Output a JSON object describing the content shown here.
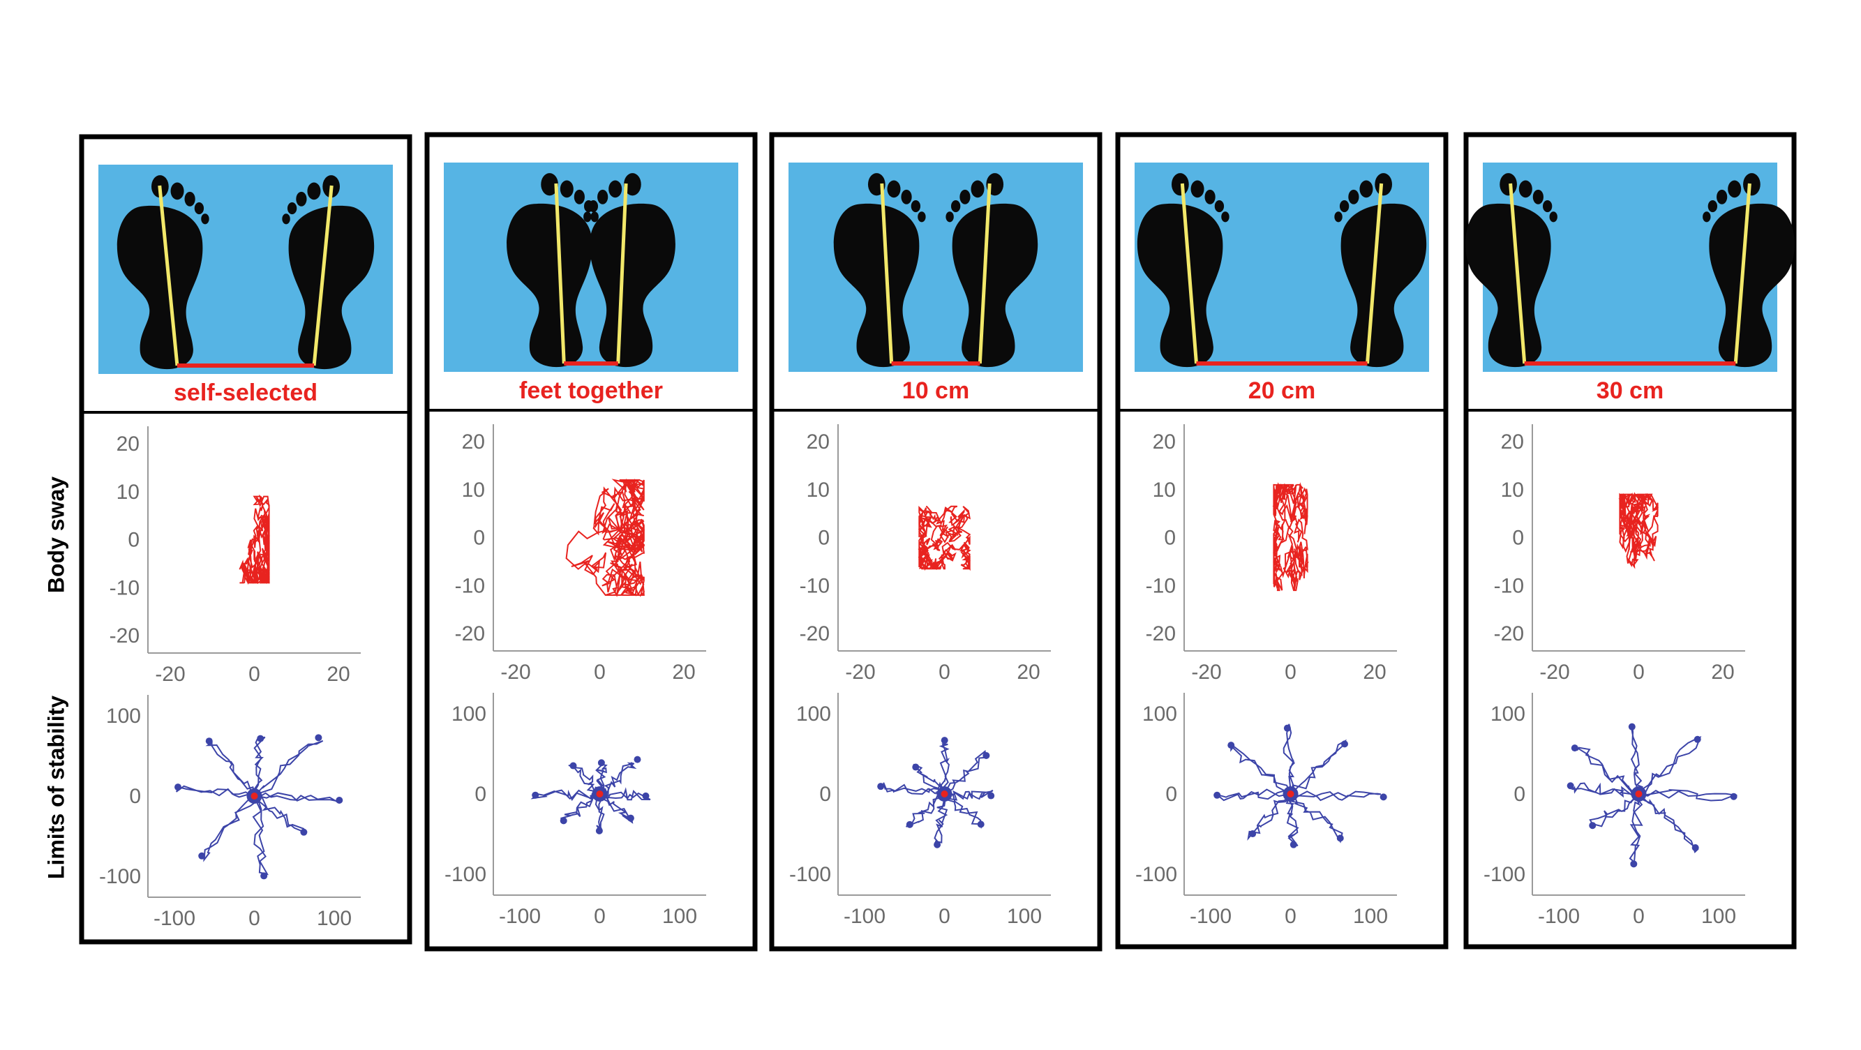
{
  "row_labels": {
    "body_sway": "Body sway",
    "limits_of_stability": "Limits of stability"
  },
  "colors": {
    "background": "#56b4e4",
    "foot": "#0a0a0a",
    "axis_line": "#f2e86a",
    "base_width": "#e8231f",
    "sway_trace": "#e8231f",
    "los_trace": "#3c44a8",
    "los_center": "#e8231f",
    "tick_text": "#6a6a6a",
    "panel_border": "#000000"
  },
  "panels": [
    {
      "condition": "self-selected",
      "stance_width": 0.55,
      "toe_out": 1.0,
      "sway_range": [
        7,
        18
      ],
      "los_reach": 1.0
    },
    {
      "condition": "feet together",
      "stance_width": 0.0,
      "toe_out": 0.45,
      "sway_range": [
        21,
        24
      ],
      "los_reach": 0.6
    },
    {
      "condition": "10 cm",
      "stance_width": 0.22,
      "toe_out": 0.55,
      "sway_range": [
        12,
        13
      ],
      "los_reach": 0.68
    },
    {
      "condition": "20 cm",
      "stance_width": 0.75,
      "toe_out": 0.8,
      "sway_range": [
        8,
        22
      ],
      "los_reach": 0.9
    },
    {
      "condition": "30 cm",
      "stance_width": 1.0,
      "toe_out": 0.8,
      "sway_range": [
        9,
        18
      ],
      "los_reach": 1.0
    }
  ],
  "body_sway_axes": {
    "ticks": [
      "20",
      "10",
      "0",
      "-10",
      "-20"
    ],
    "x_ticks": [
      "-20",
      "0",
      "20"
    ]
  },
  "los_axes": {
    "ticks": [
      "100",
      "0",
      "-100"
    ],
    "x_ticks": [
      "-100",
      "0",
      "100"
    ]
  }
}
